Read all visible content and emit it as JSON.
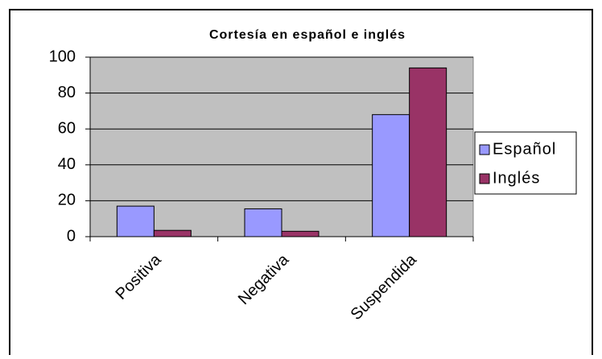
{
  "chart_data": {
    "type": "bar",
    "title": "Cortesía en español e inglés",
    "categories": [
      "Positiva",
      "Negativa",
      "Suspendida"
    ],
    "series": [
      {
        "name": "Español",
        "color": "#9999ff",
        "values": [
          17,
          15.5,
          68
        ]
      },
      {
        "name": "Inglés",
        "color": "#993366",
        "values": [
          3.5,
          3,
          94
        ]
      }
    ],
    "ylim": [
      0,
      100
    ],
    "yticks": [
      0,
      20,
      40,
      60,
      80,
      100
    ],
    "grid": true,
    "legend": "right"
  }
}
